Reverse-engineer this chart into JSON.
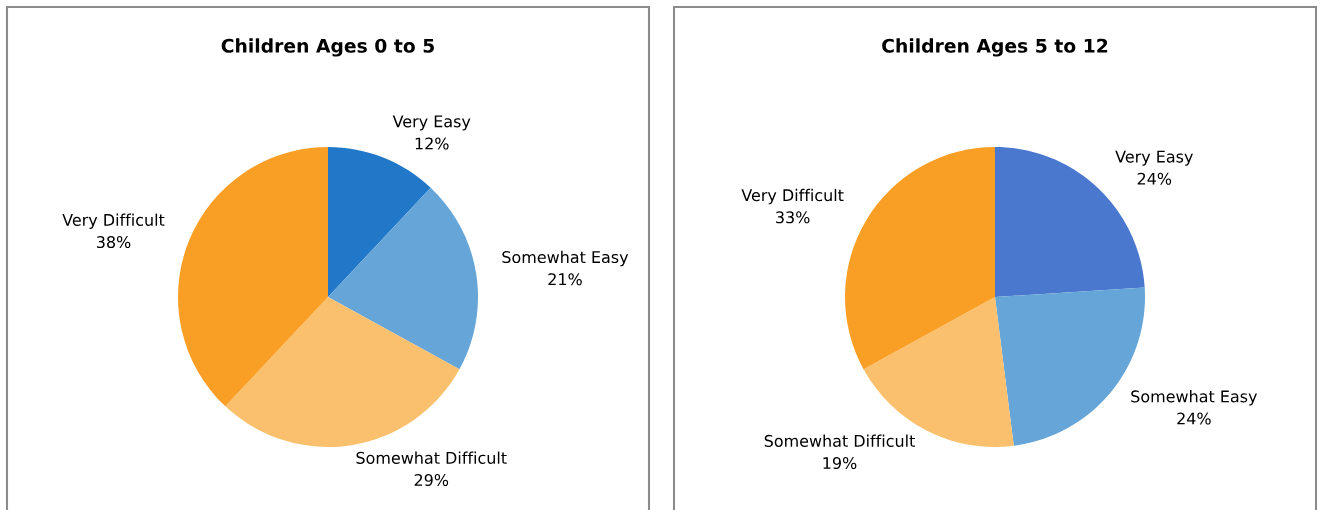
{
  "chart_data": [
    {
      "type": "pie",
      "title": "Children Ages 0 to 5",
      "categories": [
        "Very Easy",
        "Somewhat Easy",
        "Somewhat Difficult",
        "Very Difficult"
      ],
      "values": [
        12,
        21,
        29,
        38
      ],
      "colors": [
        "#2178c8",
        "#65a5d8",
        "#fbc06e",
        "#fa9f26"
      ],
      "value_labels": [
        "12%",
        "21%",
        "29%",
        "38%"
      ]
    },
    {
      "type": "pie",
      "title": "Children Ages 5 to 12",
      "categories": [
        "Very Easy",
        "Somewhat Easy",
        "Somewhat Difficult",
        "Very Difficult"
      ],
      "values": [
        24,
        24,
        19,
        33
      ],
      "colors": [
        "#4a78cf",
        "#65a5d8",
        "#fbc06e",
        "#fa9f26"
      ],
      "value_labels": [
        "24%",
        "24%",
        "19%",
        "33%"
      ]
    }
  ]
}
